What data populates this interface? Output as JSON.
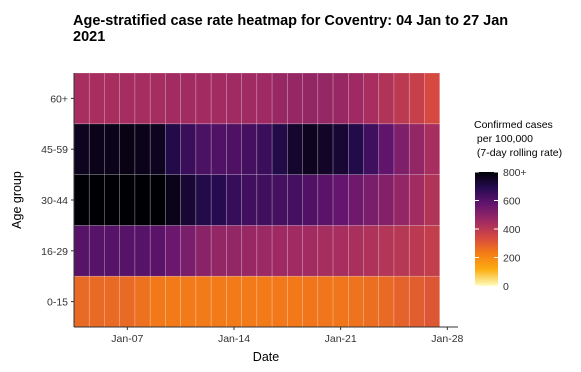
{
  "chart_data": {
    "type": "heatmap",
    "title_lines": [
      "Age-stratified case rate heatmap for Coventry: 04 Jan to 27 Jan",
      "2021"
    ],
    "xlabel": "Date",
    "ylabel": "Age group",
    "x_start": "2021-01-04",
    "x_end": "2021-01-27",
    "x_tick_dates": [
      "2021-01-07",
      "2021-01-14",
      "2021-01-21",
      "2021-01-28"
    ],
    "x_tick_labels": [
      "Jan-07",
      "Jan-14",
      "Jan-21",
      "Jan-28"
    ],
    "y_categories": [
      "0-15",
      "16-29",
      "30-44",
      "45-59",
      "60+"
    ],
    "values": {
      "60+": [
        440,
        440,
        440,
        445,
        445,
        445,
        450,
        450,
        450,
        450,
        455,
        455,
        460,
        470,
        475,
        480,
        475,
        470,
        460,
        440,
        420,
        395,
        375,
        340
      ],
      "45-59": [
        760,
        770,
        770,
        775,
        770,
        760,
        700,
        650,
        620,
        610,
        615,
        630,
        650,
        700,
        740,
        760,
        750,
        730,
        700,
        640,
        580,
        520,
        480,
        440
      ],
      "30-44": [
        830,
        840,
        835,
        830,
        850,
        830,
        770,
        730,
        700,
        690,
        660,
        640,
        640,
        630,
        630,
        610,
        590,
        570,
        550,
        530,
        510,
        480,
        450,
        420
      ],
      "16-29": [
        600,
        600,
        600,
        600,
        600,
        590,
        560,
        530,
        500,
        480,
        480,
        470,
        465,
        460,
        455,
        450,
        445,
        440,
        435,
        425,
        415,
        405,
        395,
        380
      ],
      "0-15": [
        270,
        270,
        270,
        270,
        255,
        240,
        235,
        235,
        235,
        235,
        235,
        235,
        235,
        240,
        240,
        245,
        245,
        245,
        250,
        260,
        270,
        285,
        295,
        310
      ]
    },
    "legend": {
      "title_lines": [
        "Confirmed cases",
        " per 100,000",
        " (7-day rolling rate)"
      ],
      "ticks": [
        0,
        200,
        400,
        600,
        800
      ],
      "tick_labels": [
        "0",
        "200",
        "400",
        "600",
        "800+"
      ],
      "range": [
        0,
        800
      ],
      "colors": [
        "#fcfdbf",
        "#fcae12",
        "#f57d15",
        "#d44842",
        "#9f2a63",
        "#65156e",
        "#280b53",
        "#000004"
      ]
    }
  }
}
